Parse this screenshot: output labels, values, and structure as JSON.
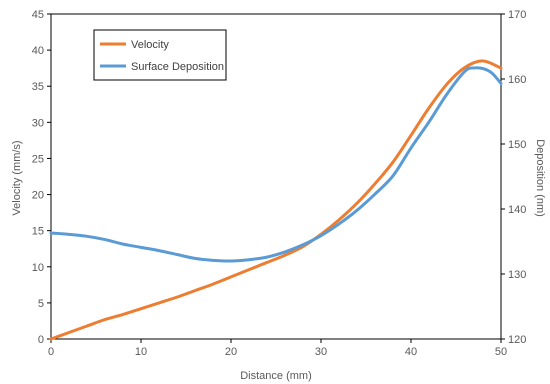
{
  "chart_data": {
    "type": "line",
    "xlabel": "Distance (mm)",
    "ylabel_left": "Velocity (mm/s)",
    "ylabel_right": "Deposition (nm)",
    "xlim": [
      0,
      50
    ],
    "ylim_left": [
      0,
      45
    ],
    "ylim_right": [
      120,
      170
    ],
    "x_ticks": [
      0,
      10,
      20,
      30,
      40,
      50
    ],
    "y_left_ticks": [
      0,
      5,
      10,
      15,
      20,
      25,
      30,
      35,
      40,
      45
    ],
    "y_right_ticks": [
      120,
      130,
      140,
      150,
      160,
      170
    ],
    "grid": false,
    "legend_position": "top-left",
    "series": [
      {
        "name": "Velocity",
        "axis": "left",
        "color": "#ED7D31",
        "x": [
          0,
          2,
          4,
          6,
          8,
          10,
          12,
          14,
          16,
          18,
          20,
          22,
          24,
          26,
          28,
          30,
          32,
          34,
          36,
          38,
          40,
          42,
          44,
          46,
          48,
          50
        ],
        "y": [
          0,
          0.9,
          1.8,
          2.7,
          3.4,
          4.2,
          5.0,
          5.8,
          6.7,
          7.6,
          8.6,
          9.6,
          10.6,
          11.6,
          12.8,
          14.5,
          16.5,
          18.8,
          21.5,
          24.5,
          28.2,
          32.0,
          35.3,
          37.6,
          38.5,
          37.5
        ]
      },
      {
        "name": "Surface Deposition",
        "axis": "right",
        "color": "#5B9BD5",
        "x": [
          0,
          2,
          4,
          6,
          8,
          10,
          12,
          14,
          16,
          18,
          20,
          22,
          24,
          26,
          28,
          30,
          32,
          34,
          36,
          38,
          40,
          42,
          44,
          46,
          47,
          48,
          49,
          50
        ],
        "y": [
          136.3,
          136.1,
          135.8,
          135.3,
          134.6,
          134.1,
          133.6,
          133.0,
          132.4,
          132.1,
          132.0,
          132.2,
          132.6,
          133.4,
          134.5,
          135.9,
          137.7,
          139.8,
          142.3,
          145.1,
          149.4,
          153.4,
          157.7,
          161.2,
          161.7,
          161.6,
          160.9,
          159.3
        ]
      }
    ]
  }
}
